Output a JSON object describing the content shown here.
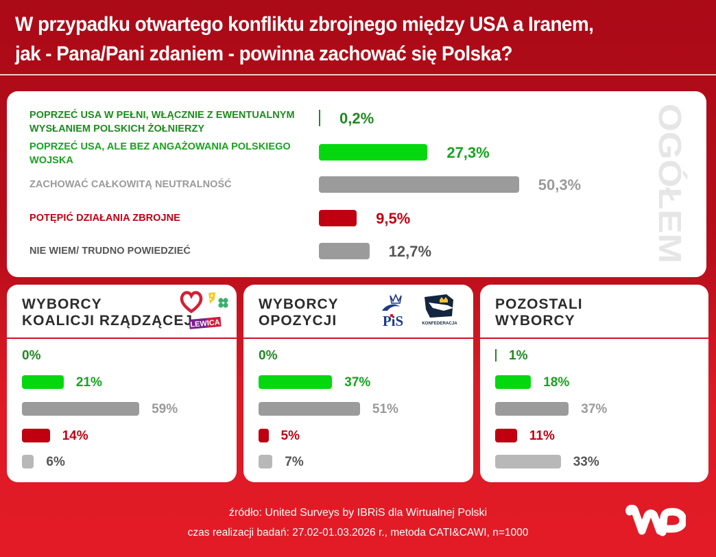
{
  "title": {
    "line1": "W przypadku otwartego konfliktu zbrojnego między USA a Iranem,",
    "line2": "jak - Pana/Pani zdaniem - powinna zachować się Polska?"
  },
  "colors": {
    "dark_green": "#1e8a1e",
    "green": "#05d80f",
    "green_text": "#17a31d",
    "gray_bar": "#9b9b9b",
    "light_gray_bar": "#b8b8b8",
    "gray_text": "#9a9a9a",
    "dark_gray_text": "#555555",
    "red": "#c00010",
    "background_red": "#e31b27"
  },
  "chart_data": [
    {
      "type": "bar",
      "orientation": "horizontal",
      "title": "OGÓŁEM",
      "unit": "%",
      "categories": [
        "POPRZEĆ USA W PEŁNI, WŁĄCZNIE Z EWENTUALNYM WYSŁANIEM POLSKICH ŻOŁNIERZY",
        "POPRZEĆ USA, ALE BEZ ANGAŻOWANIA POLSKIEGO WOJSKA",
        "ZACHOWAĆ CAŁKOWITĄ NEUTRALNOŚĆ",
        "POTĘPIĆ DZIAŁANIA ZBROJNE",
        "NIE WIEM/ TRUDNO POWIEDZIEĆ"
      ],
      "category_lines": [
        [
          "POPRZEĆ USA W PEŁNI, WŁĄCZNIE Z EWENTUALNYM",
          "WYSŁANIEM POLSKICH ŻOŁNIERZY"
        ],
        [
          "POPRZEĆ USA, ALE BEZ ANGAŻOWANIA POLSKIEGO",
          "WOJSKA"
        ],
        [
          "ZACHOWAĆ CAŁKOWITĄ NEUTRALNOŚĆ"
        ],
        [
          "POTĘPIĆ DZIAŁANIA ZBROJNE"
        ],
        [
          "NIE WIEM/ TRUDNO POWIEDZIEĆ"
        ]
      ],
      "values": [
        0.2,
        27.3,
        50.3,
        9.5,
        12.7
      ],
      "value_labels": [
        "0,2%",
        "27,3%",
        "50,3%",
        "9,5%",
        "12,7%"
      ]
    },
    {
      "type": "bar",
      "orientation": "horizontal",
      "title": "WYBORCY\nKOALICJI RZĄDZĄCEJ",
      "logos": [
        "KO heart",
        "Polska 2050",
        "PSL clover",
        "LEWICA"
      ],
      "logo_text": "LEWICA",
      "unit": "%",
      "values": [
        0,
        21,
        59,
        14,
        6
      ],
      "value_labels": [
        "0%",
        "21%",
        "59%",
        "14%",
        "6%"
      ]
    },
    {
      "type": "bar",
      "orientation": "horizontal",
      "title": "WYBORCY\nOPOZYCJI",
      "logos": [
        "PiS",
        "KONFEDERACJA"
      ],
      "logo_text": [
        "PiS",
        "KONFEDERACJA"
      ],
      "unit": "%",
      "values": [
        0,
        37,
        51,
        5,
        7
      ],
      "value_labels": [
        "0%",
        "37%",
        "51%",
        "5%",
        "7%"
      ]
    },
    {
      "type": "bar",
      "orientation": "horizontal",
      "title": "POZOSTALI\nWYBORCY",
      "unit": "%",
      "values": [
        1,
        18,
        37,
        11,
        33
      ],
      "value_labels": [
        "1%",
        "18%",
        "37%",
        "11%",
        "33%"
      ]
    }
  ],
  "footer": {
    "source": "źródło: United Surveys by IBRiS dla Wirtualnej Polski",
    "method": "czas realizacji badań: 27.02-01.03.2026 r., metoda CATI&CAWI, n=1000",
    "logo_text": "WP"
  }
}
